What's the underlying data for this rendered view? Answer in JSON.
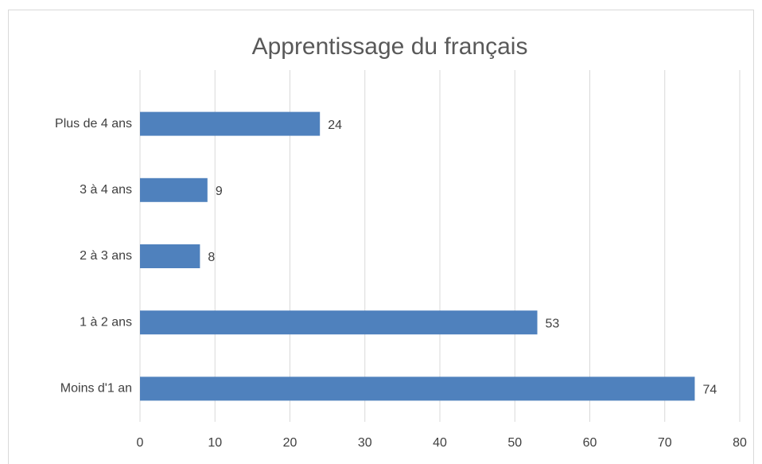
{
  "chart_data": {
    "type": "bar",
    "orientation": "horizontal",
    "title": "Apprentissage du français",
    "categories": [
      "Moins d'1 an",
      "1 à 2 ans",
      "2 à 3 ans",
      "3 à 4 ans",
      "Plus de 4 ans"
    ],
    "values": [
      74,
      53,
      8,
      9,
      24
    ],
    "color": "#4f81bd",
    "xlim": [
      0,
      80
    ],
    "xticks": [
      0,
      10,
      20,
      30,
      40,
      50,
      60,
      70,
      80
    ],
    "grid": true
  }
}
